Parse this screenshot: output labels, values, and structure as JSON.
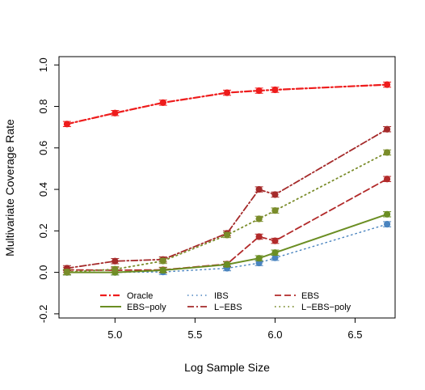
{
  "chart_data": {
    "type": "line",
    "title": "",
    "xlabel": "Log Sample Size",
    "ylabel": "Multivariate Coverage Rate",
    "xlim": [
      4.65,
      6.75
    ],
    "ylim": [
      -0.22,
      1.04
    ],
    "xticks": [
      "5.0",
      "5.5",
      "6.0",
      "6.5"
    ],
    "yticks": [
      "-0.2",
      "0.0",
      "0.2",
      "0.4",
      "0.6",
      "0.8",
      "1.0"
    ],
    "grid": false,
    "legend_position": "bottom-center",
    "x": [
      4.7,
      5.0,
      5.3,
      5.7,
      5.9,
      6.0,
      6.7
    ],
    "series": [
      {
        "name": "Oracle",
        "color": "#ee1c1c",
        "dash": "dashdot",
        "width": 2.2,
        "values": [
          0.715,
          0.768,
          0.818,
          0.866,
          0.876,
          0.88,
          0.905
        ]
      },
      {
        "name": "IBS",
        "color": "#4a84bf",
        "dash": "dotted",
        "width": 1.4,
        "values": [
          0.0,
          0.0,
          0.002,
          0.02,
          0.045,
          0.07,
          0.232
        ]
      },
      {
        "name": "EBS",
        "color": "#b22a2a",
        "dash": "dashed",
        "width": 1.8,
        "values": [
          0.012,
          0.01,
          0.012,
          0.04,
          0.172,
          0.152,
          0.45
        ]
      },
      {
        "name": "EBS−poly",
        "color": "#6b8e23",
        "dash": "solid",
        "width": 2.0,
        "values": [
          0.0,
          0.0,
          0.01,
          0.038,
          0.068,
          0.095,
          0.28
        ]
      },
      {
        "name": "L−EBS",
        "color": "#a52a2a",
        "dash": "dashdot",
        "width": 1.8,
        "values": [
          0.02,
          0.054,
          0.062,
          0.188,
          0.4,
          0.375,
          0.69
        ]
      },
      {
        "name": "L−EBS−poly",
        "color": "#7a8c2a",
        "dash": "dotted",
        "width": 1.8,
        "values": [
          0.002,
          0.015,
          0.055,
          0.18,
          0.258,
          0.298,
          0.578
        ]
      }
    ]
  }
}
